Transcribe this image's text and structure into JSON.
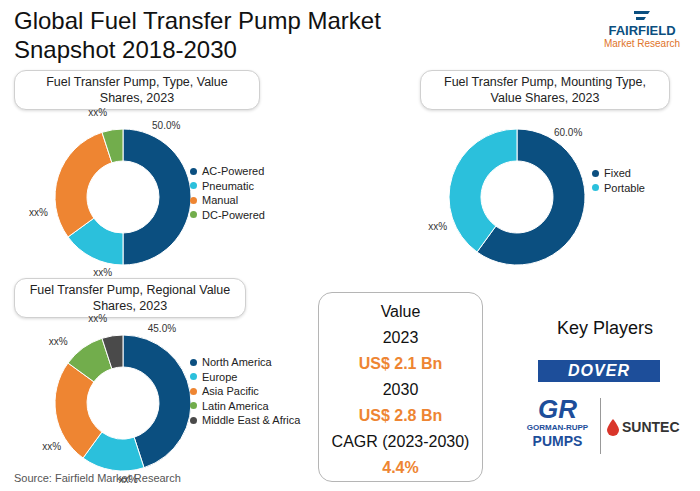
{
  "title": "Global Fuel Transfer Pump Market Snapshot 2018-2030",
  "logo": {
    "name": "FAIRFIELD",
    "tagline": "Market Research"
  },
  "chart_data": [
    {
      "type": "donut",
      "title": "Fuel Transfer Pump, Type, Value Shares, 2023",
      "categories": [
        "AC-Powered",
        "Pneumatic",
        "Manual",
        "DC-Powered"
      ],
      "values": [
        50,
        15,
        30,
        5
      ],
      "value_labels": [
        "50.0%",
        "xx%",
        "xx%",
        "xx%"
      ],
      "colors": [
        "#0b4f80",
        "#2bc0dc",
        "#ee8532",
        "#72ad4c"
      ],
      "data_labels": true,
      "legend": "right"
    },
    {
      "type": "donut",
      "title": "Fuel Transfer Pump, Mounting Type, Value Shares, 2023",
      "categories": [
        "Fixed",
        "Portable"
      ],
      "values": [
        60,
        40
      ],
      "value_labels": [
        "60.0%",
        "xx%"
      ],
      "colors": [
        "#0b4f80",
        "#2bc0dc"
      ],
      "data_labels": true,
      "legend": "right"
    },
    {
      "type": "donut",
      "title": "Fuel Transfer Pump, Regional Value Shares, 2023",
      "categories": [
        "North America",
        "Europe",
        "Asia Pacific",
        "Latin America",
        "Middle East & Africa"
      ],
      "values": [
        45,
        15,
        25,
        10,
        5
      ],
      "value_labels": [
        "45.0%",
        "xx%",
        "xx%",
        "xx%",
        "xx%"
      ],
      "colors": [
        "#0b4f80",
        "#2bc0dc",
        "#ee8532",
        "#72ad4c",
        "#4a4a4a"
      ],
      "data_labels": true,
      "legend": "right"
    }
  ],
  "value_box": {
    "heading": "Value",
    "items": [
      {
        "label": "2023",
        "value": "US$ 2.1 Bn"
      },
      {
        "label": "2030",
        "value": "US$ 2.8 Bn"
      },
      {
        "label": "CAGR (2023-2030)",
        "value": "4.4%"
      }
    ]
  },
  "key_players": {
    "heading": "Key Players",
    "companies": [
      {
        "name": "DOVER"
      },
      {
        "mark": "GR",
        "name": "GORMAN-RUPP",
        "sub": "PUMPS"
      },
      {
        "name": "SUNTEC"
      }
    ]
  },
  "source": "Source: Fairfield Market Research"
}
